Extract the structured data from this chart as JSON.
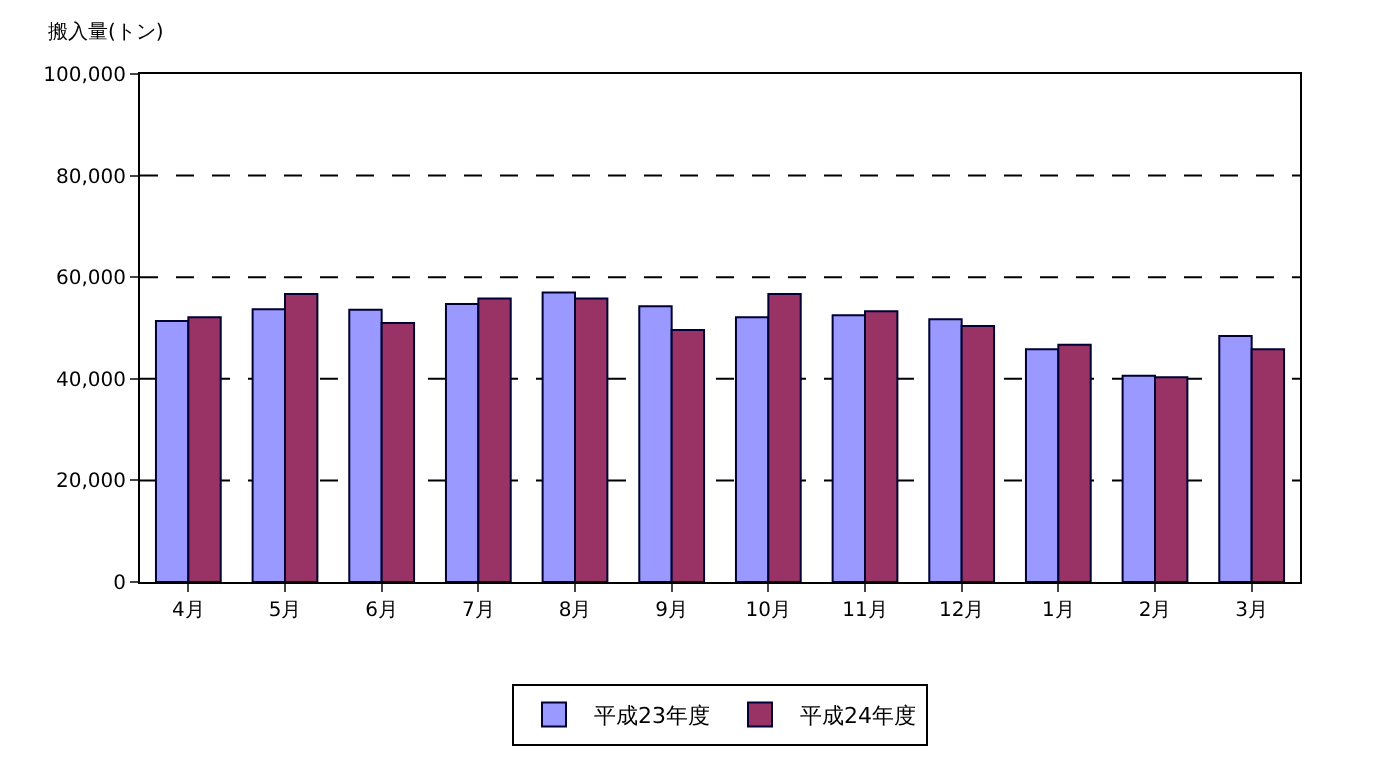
{
  "chart_data": {
    "type": "bar",
    "ylabel": "搬入量(トン)",
    "categories": [
      "4月",
      "5月",
      "6月",
      "7月",
      "8月",
      "9月",
      "10月",
      "11月",
      "12月",
      "1月",
      "2月",
      "3月"
    ],
    "series": [
      {
        "name": "平成23年度",
        "color": "#9999ff",
        "values": [
          51400,
          53700,
          53600,
          54700,
          57000,
          54300,
          52100,
          52500,
          51700,
          45800,
          40600,
          48400
        ]
      },
      {
        "name": "平成24年度",
        "color": "#993366",
        "values": [
          52100,
          56700,
          51000,
          55800,
          55800,
          49600,
          56700,
          53300,
          50400,
          46700,
          40300,
          45800
        ]
      }
    ],
    "ylim": [
      0,
      100000
    ],
    "yticks": [
      {
        "value": 0,
        "label": "0"
      },
      {
        "value": 20000,
        "label": "20,000"
      },
      {
        "value": 40000,
        "label": "40,000"
      },
      {
        "value": 60000,
        "label": "60,000"
      },
      {
        "value": 80000,
        "label": "80,000"
      },
      {
        "value": 100000,
        "label": "100,000"
      }
    ],
    "grid": "y",
    "legend": "bottom"
  }
}
